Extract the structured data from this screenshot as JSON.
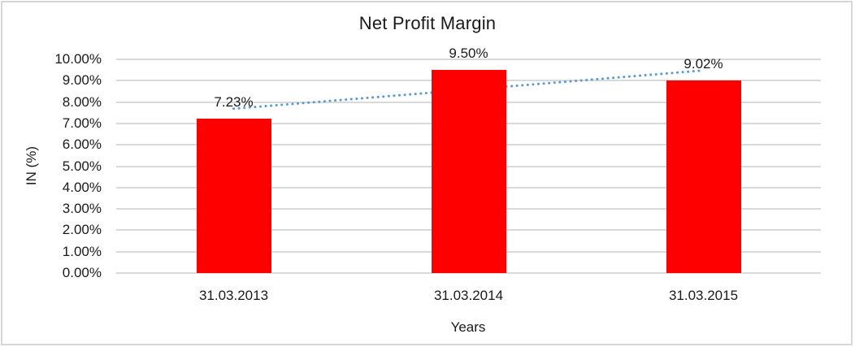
{
  "chart_data": {
    "type": "bar",
    "title": "Net Profit Margin",
    "xlabel": "Years",
    "ylabel": "IN (%)",
    "categories": [
      "31.03.2013",
      "31.03.2014",
      "31.03.2015"
    ],
    "values": [
      7.23,
      9.5,
      9.02
    ],
    "data_labels": [
      "7.23%",
      "9.50%",
      "9.02%"
    ],
    "y_ticks": [
      "10.00%",
      "9.00%",
      "8.00%",
      "7.00%",
      "6.00%",
      "5.00%",
      "4.00%",
      "3.00%",
      "2.00%",
      "1.00%",
      "0.00%"
    ],
    "ylim": [
      0,
      10
    ],
    "grid": true,
    "legend": "none",
    "bar_color": "#ff0000",
    "gridline_color": "#d9d9d9",
    "frame_color": "#d6d6d6",
    "text_color": "#1a1a1a",
    "trendline": {
      "style": "dotted",
      "color": "#5b9bd5",
      "values": [
        7.69,
        8.58,
        9.48
      ]
    }
  }
}
